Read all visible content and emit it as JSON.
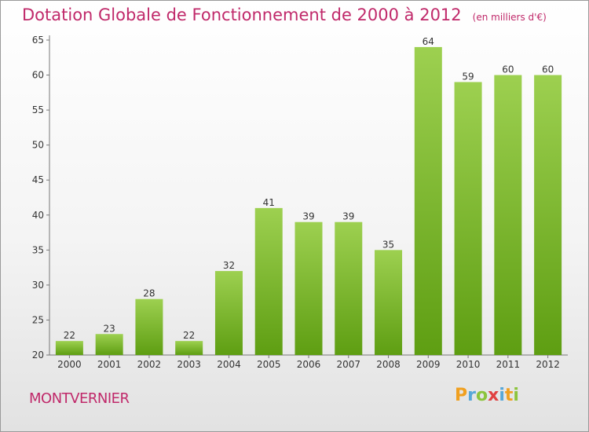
{
  "header": {
    "title": "Dotation Globale de Fonctionnement de 2000 à 2012",
    "unit": "(en milliers d'€)"
  },
  "footer": {
    "commune": "MONTVERNIER",
    "logo": [
      "P",
      "r",
      "o",
      "x",
      "i",
      "t",
      "i"
    ]
  },
  "colors": {
    "title": "#c0296a",
    "bar_top": "#9dd050",
    "bar_bottom": "#5e9e12"
  },
  "chart_data": {
    "type": "bar",
    "title": "Dotation Globale de Fonctionnement de 2000 à 2012",
    "subtitle": "(en milliers d'€)",
    "categories": [
      "2000",
      "2001",
      "2002",
      "2003",
      "2004",
      "2005",
      "2006",
      "2007",
      "2008",
      "2009",
      "2010",
      "2011",
      "2012"
    ],
    "values": [
      22,
      23,
      28,
      22,
      32,
      41,
      39,
      39,
      35,
      64,
      59,
      60,
      60
    ],
    "ylim": [
      20,
      65
    ],
    "yticks": [
      20,
      25,
      30,
      35,
      40,
      45,
      50,
      55,
      60,
      65
    ],
    "grid": false,
    "data_labels": true
  }
}
